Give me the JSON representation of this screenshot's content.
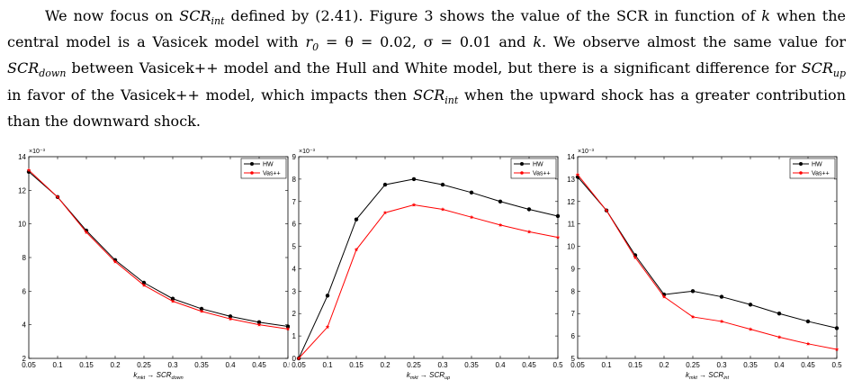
{
  "paragraph": {
    "t1": "We now focus on ",
    "scr": "SCR",
    "int": "int",
    "t2": " defined by (2.41). Figure 3 shows the value of the SCR in function of ",
    "k": "k",
    "t3": " when the central model is a Vasicek model with ",
    "params": "r",
    "r_sub": "0",
    "t4": " = θ = 0.02, σ = 0.01 and ",
    "k2": "k",
    "t5": ". We observe almost the same value for ",
    "down": "down",
    "t6": " between Vasicek++ model and the Hull and White model, but there is a significant difference for ",
    "up": "up",
    "t7": " in favor of the Vasicek++ model, which impacts then ",
    "t8": " when the upward shock has a greater contribution than the downward shock."
  },
  "chart_data": [
    {
      "type": "line",
      "exponent_label": "×10⁻³",
      "xlabel_main": "k",
      "xlabel_sub": "mkt",
      "xlabel_arrow": " → SCR",
      "xlabel_sub2": "down",
      "xlim": [
        0.05,
        0.5
      ],
      "ylim": [
        2,
        14
      ],
      "xticks": [
        "0.05",
        "0.1",
        "0.15",
        "0.2",
        "0.25",
        "0.3",
        "0.35",
        "0.4",
        "0.45",
        "0.5"
      ],
      "yticks": [
        2,
        4,
        6,
        8,
        10,
        12,
        14
      ],
      "legend_position": "top-right",
      "x": [
        0.05,
        0.1,
        0.15,
        0.2,
        0.25,
        0.3,
        0.35,
        0.4,
        0.45,
        0.5
      ],
      "series": [
        {
          "name": "HW",
          "color": "#000000",
          "values": [
            13.1,
            11.6,
            9.6,
            7.85,
            6.5,
            5.55,
            4.95,
            4.5,
            4.15,
            3.9
          ]
        },
        {
          "name": "Vas++",
          "color": "#ff0000",
          "values": [
            13.2,
            11.6,
            9.5,
            7.75,
            6.35,
            5.4,
            4.8,
            4.35,
            4.0,
            3.75
          ]
        }
      ]
    },
    {
      "type": "line",
      "exponent_label": "×10⁻³",
      "xlabel_main": "k",
      "xlabel_sub": "mkt",
      "xlabel_arrow": " → SCR",
      "xlabel_sub2": "up",
      "xlim": [
        0.05,
        0.5
      ],
      "ylim": [
        0,
        9
      ],
      "xticks": [
        "0.05",
        "0.1",
        "0.15",
        "0.2",
        "0.25",
        "0.3",
        "0.35",
        "0.4",
        "0.45",
        "0.5"
      ],
      "yticks": [
        0,
        1,
        2,
        3,
        4,
        5,
        6,
        7,
        8,
        9
      ],
      "legend_position": "top-right",
      "x": [
        0.05,
        0.1,
        0.15,
        0.2,
        0.25,
        0.3,
        0.35,
        0.4,
        0.45,
        0.5
      ],
      "series": [
        {
          "name": "HW",
          "color": "#000000",
          "values": [
            0,
            2.8,
            6.2,
            7.75,
            8.0,
            7.75,
            7.4,
            7.0,
            6.65,
            6.35
          ]
        },
        {
          "name": "Vas++",
          "color": "#ff0000",
          "values": [
            0,
            1.4,
            4.85,
            6.5,
            6.85,
            6.65,
            6.3,
            5.95,
            5.65,
            5.4
          ]
        }
      ]
    },
    {
      "type": "line",
      "exponent_label": "×10⁻³",
      "xlabel_main": "k",
      "xlabel_sub": "mkt",
      "xlabel_arrow": " → SCR",
      "xlabel_sub2": "int",
      "xlim": [
        0.05,
        0.5
      ],
      "ylim": [
        5,
        14
      ],
      "xticks": [
        "0.05",
        "0.1",
        "0.15",
        "0.2",
        "0.25",
        "0.3",
        "0.35",
        "0.4",
        "0.45",
        "0.5"
      ],
      "yticks": [
        5,
        6,
        7,
        8,
        9,
        10,
        11,
        12,
        13,
        14
      ],
      "legend_position": "top-right",
      "x": [
        0.05,
        0.1,
        0.15,
        0.2,
        0.25,
        0.3,
        0.35,
        0.4,
        0.45,
        0.5
      ],
      "series": [
        {
          "name": "HW",
          "color": "#000000",
          "values": [
            13.1,
            11.6,
            9.6,
            7.85,
            8.0,
            7.75,
            7.4,
            7.0,
            6.65,
            6.35
          ]
        },
        {
          "name": "Vas++",
          "color": "#ff0000",
          "values": [
            13.2,
            11.6,
            9.5,
            7.75,
            6.85,
            6.65,
            6.3,
            5.95,
            5.65,
            5.4
          ]
        }
      ]
    }
  ]
}
